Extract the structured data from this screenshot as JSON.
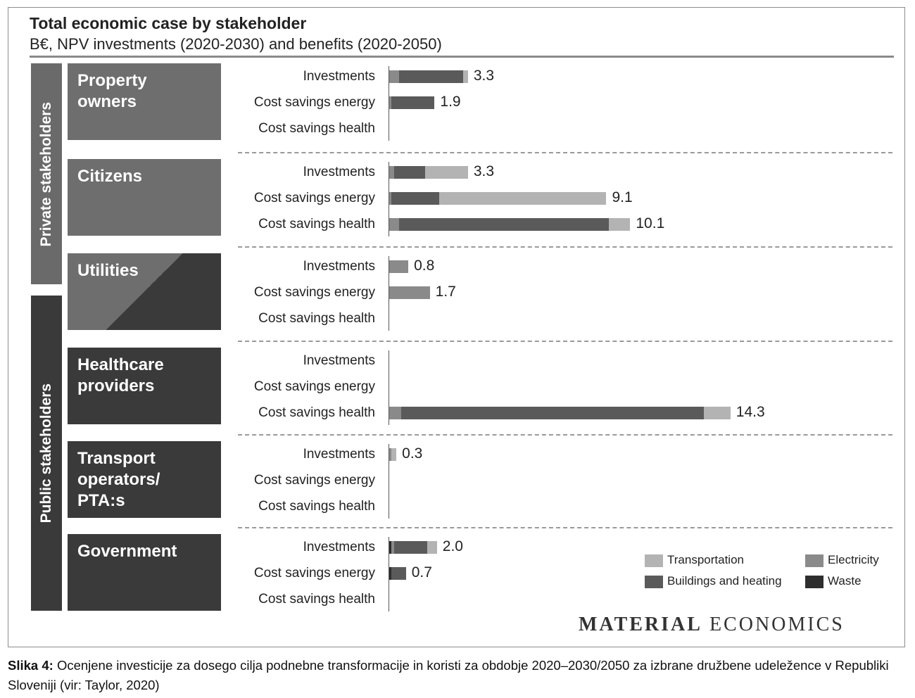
{
  "title": "Total economic case by stakeholder",
  "subtitle": "B€, NPV investments (2020-2030) and benefits (2020-2050)",
  "categories": [
    {
      "label": "Private stakeholders",
      "color": "#6a6a6a"
    },
    {
      "label": "Public stakeholders",
      "color": "#3a3a3a"
    }
  ],
  "colors": {
    "Transportation": "#b3b3b3",
    "Electricity": "#8a8a8a",
    "Buildings and heating": "#5a5a5a",
    "Waste": "#2e2e2e"
  },
  "chart_data": {
    "type": "bar",
    "orientation": "horizontal",
    "stacked": true,
    "xlim": [
      0,
      15
    ],
    "series_names": [
      "Waste",
      "Electricity",
      "Buildings and heating",
      "Transportation"
    ],
    "groups": [
      {
        "stakeholder": "Property owners",
        "category": "Private stakeholders",
        "shade": "#6e6e6e",
        "rows": [
          {
            "label": "Investments",
            "total": "3.3",
            "segments": [
              [
                "Electricity",
                0.4
              ],
              [
                "Buildings and heating",
                2.7
              ],
              [
                "Transportation",
                0.2
              ]
            ]
          },
          {
            "label": "Cost savings energy",
            "total": "1.9",
            "segments": [
              [
                "Electricity",
                0.1
              ],
              [
                "Buildings and heating",
                1.8
              ]
            ]
          },
          {
            "label": "Cost savings health",
            "total": "",
            "segments": []
          }
        ]
      },
      {
        "stakeholder": "Citizens",
        "category": "Private stakeholders",
        "shade": "#6e6e6e",
        "rows": [
          {
            "label": "Investments",
            "total": "3.3",
            "segments": [
              [
                "Electricity",
                0.2
              ],
              [
                "Buildings and heating",
                1.3
              ],
              [
                "Transportation",
                1.8
              ]
            ]
          },
          {
            "label": "Cost savings energy",
            "total": "9.1",
            "segments": [
              [
                "Electricity",
                0.1
              ],
              [
                "Buildings and heating",
                2.0
              ],
              [
                "Transportation",
                7.0
              ]
            ]
          },
          {
            "label": "Cost savings health",
            "total": "10.1",
            "segments": [
              [
                "Electricity",
                0.4
              ],
              [
                "Buildings and heating",
                8.8
              ],
              [
                "Transportation",
                0.9
              ]
            ]
          }
        ]
      },
      {
        "stakeholder": "Utilities",
        "category": "Private stakeholders",
        "shade": "#555555",
        "rows": [
          {
            "label": "Investments",
            "total": "0.8",
            "segments": [
              [
                "Electricity",
                0.8
              ]
            ]
          },
          {
            "label": "Cost savings energy",
            "total": "1.7",
            "segments": [
              [
                "Electricity",
                1.7
              ]
            ]
          },
          {
            "label": "Cost savings health",
            "total": "",
            "segments": []
          }
        ]
      },
      {
        "stakeholder": "Healthcare providers",
        "category": "Public stakeholders",
        "shade": "#3a3a3a",
        "rows": [
          {
            "label": "Investments",
            "total": "",
            "segments": []
          },
          {
            "label": "Cost savings energy",
            "total": "",
            "segments": []
          },
          {
            "label": "Cost savings health",
            "total": "14.3",
            "segments": [
              [
                "Electricity",
                0.5
              ],
              [
                "Buildings and heating",
                12.7
              ],
              [
                "Transportation",
                1.1
              ]
            ]
          }
        ]
      },
      {
        "stakeholder": "Transport operators/ PTA:s",
        "category": "Public stakeholders",
        "shade": "#3a3a3a",
        "rows": [
          {
            "label": "Investments",
            "total": "0.3",
            "segments": [
              [
                "Electricity",
                0.1
              ],
              [
                "Transportation",
                0.2
              ]
            ]
          },
          {
            "label": "Cost savings energy",
            "total": "",
            "segments": []
          },
          {
            "label": "Cost savings health",
            "total": "",
            "segments": []
          }
        ]
      },
      {
        "stakeholder": "Government",
        "category": "Public stakeholders",
        "shade": "#3a3a3a",
        "rows": [
          {
            "label": "Investments",
            "total": "2.0",
            "segments": [
              [
                "Waste",
                0.1
              ],
              [
                "Electricity",
                0.1
              ],
              [
                "Buildings and heating",
                1.4
              ],
              [
                "Transportation",
                0.4
              ]
            ]
          },
          {
            "label": "Cost savings energy",
            "total": "0.7",
            "segments": [
              [
                "Waste",
                0.1
              ],
              [
                "Buildings and heating",
                0.6
              ]
            ]
          },
          {
            "label": "Cost savings health",
            "total": "",
            "segments": []
          }
        ]
      }
    ],
    "legend": [
      "Transportation",
      "Electricity",
      "Buildings and heating",
      "Waste"
    ],
    "legend_position": "bottom-right"
  },
  "brand": {
    "part1": "MATERIAL",
    "part2": "ECONOMICS"
  },
  "caption": {
    "label": "Slika 4:",
    "text": "Ocenjene investicije za dosego cilja podnebne transformacije in koristi za obdobje 2020–2030/2050 za izbrane družbene udeležence v Republiki Sloveniji (vir: Taylor, 2020)"
  }
}
